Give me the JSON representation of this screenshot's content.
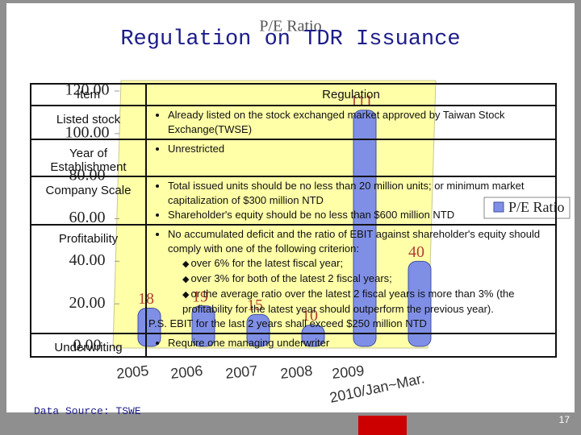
{
  "title": "Regulation on TDR Issuance",
  "chart_data": {
    "type": "bar",
    "title": "P/E Ratio",
    "categories": [
      "2005",
      "2006",
      "2007",
      "2008",
      "2009",
      "2010/Jan~Mar."
    ],
    "series": [
      {
        "name": "P/E Ratio",
        "color": "#7f8fe6",
        "values": [
          18,
          19,
          15,
          10,
          111,
          40
        ]
      }
    ],
    "ylim": [
      0,
      120
    ],
    "yticks": [
      {
        "value": 0,
        "label": "0.00"
      },
      {
        "value": 20,
        "label": "20.00"
      },
      {
        "value": 40,
        "label": "40.00"
      },
      {
        "value": 60,
        "label": "60.00"
      },
      {
        "value": 80,
        "label": "80.00"
      },
      {
        "value": 100,
        "label": "100.00"
      },
      {
        "value": 120,
        "label": "120.00"
      }
    ],
    "legend": "right"
  },
  "table": {
    "header": [
      "Item",
      "Regulation"
    ],
    "rows": [
      {
        "item": "Listed stock",
        "bullets": [
          "Already listed on the stock exchanged market approved by Taiwan Stock Exchange(TWSE)"
        ]
      },
      {
        "item": "Year of Establishment",
        "bullets": [
          "Unrestricted"
        ]
      },
      {
        "item": "Company Scale",
        "bullets": [
          "Total issued units should be no less than 20 million units; or minimum market capitalization of $300 million NTD",
          "Shareholder's equity should be no less than $600 million NTD"
        ]
      },
      {
        "item": "Profitability",
        "bullets": [
          "No accumulated deficit and the ratio of EBIT against shareholder's equity should comply with one of the following criterion:"
        ],
        "sub_bullets": [
          "over 6% for the latest fiscal year;",
          "over 3% for both of the latest 2 fiscal years;",
          "or the average ratio over the latest 2 fiscal years is more than 3% (the profitability for the latest year should outperform the previous year)."
        ],
        "note": "P.S. EBIT for the last 2 years shall exceed $250 million NTD"
      },
      {
        "item": "Underwriting",
        "bullets": [
          "Require one managing underwriter"
        ]
      }
    ]
  },
  "source": "Data Source: TSWE",
  "page_number": "17"
}
